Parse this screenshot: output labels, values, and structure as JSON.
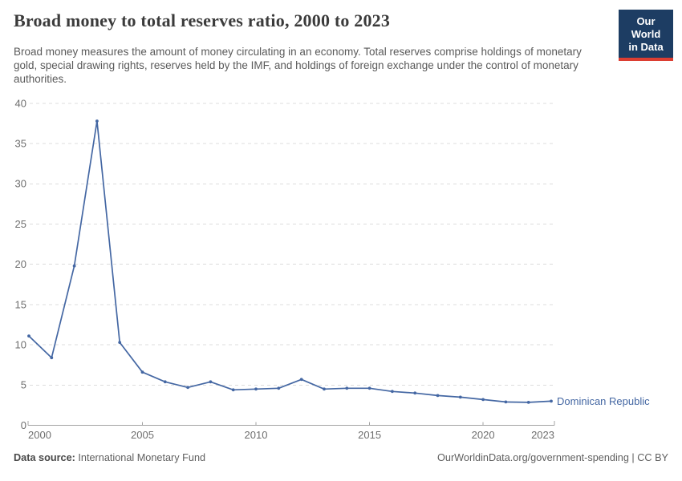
{
  "header": {
    "title": "Broad money to total reserves ratio, 2000 to 2023",
    "subtitle": "Broad money measures the amount of money circulating in an economy. Total reserves comprise holdings of monetary gold, special drawing rights, reserves held by the IMF, and holdings of foreign exchange under the control of monetary authorities.",
    "logo": {
      "line1": "Our World",
      "line2": "in Data"
    }
  },
  "chart_data": {
    "type": "line",
    "title": "Broad money to total reserves ratio, 2000 to 2023",
    "x": [
      2000,
      2001,
      2002,
      2003,
      2004,
      2005,
      2006,
      2007,
      2008,
      2009,
      2010,
      2011,
      2012,
      2013,
      2014,
      2015,
      2016,
      2017,
      2018,
      2019,
      2020,
      2021,
      2022,
      2023
    ],
    "series": [
      {
        "name": "Dominican Republic",
        "color": "#4467a3",
        "values": [
          11.1,
          8.4,
          19.8,
          37.8,
          10.3,
          6.6,
          5.4,
          4.7,
          5.4,
          4.4,
          4.5,
          4.6,
          5.7,
          4.5,
          4.6,
          4.6,
          4.2,
          4.0,
          3.7,
          3.5,
          3.2,
          2.9,
          2.85,
          3.0
        ]
      }
    ],
    "xlabel": "",
    "ylabel": "",
    "ylim": [
      0,
      40
    ],
    "yticks": [
      0,
      5,
      10,
      15,
      20,
      25,
      30,
      35,
      40
    ],
    "xticks": [
      2000,
      2005,
      2010,
      2015,
      2020,
      2023
    ],
    "grid": "horizontal-dashed",
    "legend_position": "end-of-line-label",
    "markers": "point-per-year"
  },
  "footer": {
    "source_label": "Data source:",
    "source_value": " International Monetary Fund",
    "attribution": "OurWorldinData.org/government-spending | CC BY"
  },
  "colors": {
    "line": "#4467a3",
    "grid": "#dcdcdc",
    "axis": "#a3a3a3",
    "tick_text": "#6e6e6e",
    "logo_navy": "#1d3d63",
    "logo_red": "#dc3e32"
  }
}
